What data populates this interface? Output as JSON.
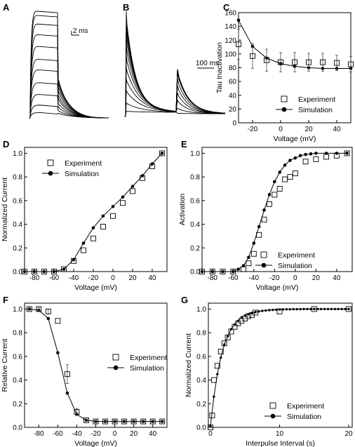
{
  "chart_data": [
    {
      "panel": "A",
      "type": "line",
      "title": "",
      "xlabel": "",
      "ylabel": "",
      "scalebar_label": "2 ms",
      "n_traces": 11,
      "trace_peaks": [
        1.0,
        0.96,
        0.88,
        0.78,
        0.67,
        0.55,
        0.45,
        0.33,
        0.22,
        0.12,
        0.05
      ],
      "axes": "none"
    },
    {
      "panel": "B",
      "type": "line",
      "title": "",
      "xlabel": "",
      "ylabel": "",
      "scalebar_label": "100 ms",
      "n_traces": 12,
      "trace_peaks": [
        1.0,
        0.95,
        0.9,
        0.84,
        0.77,
        0.68,
        0.58,
        0.47,
        0.36,
        0.25,
        0.13,
        0.05
      ],
      "axes": "none"
    },
    {
      "panel": "C",
      "type": "scatter",
      "xlabel": "Voltage (mV)",
      "ylabel": "Tau Inactivation",
      "xlim": [
        -30,
        50
      ],
      "ylim": [
        0,
        160
      ],
      "xticks": [
        -20,
        0,
        20,
        40
      ],
      "yticks": [
        0,
        20,
        40,
        60,
        80,
        100,
        120,
        140,
        160
      ],
      "legend_position": "bottom-right",
      "series": [
        {
          "name": "Experiment",
          "marker": "open-square",
          "x": [
            -30,
            -20,
            -10,
            0,
            10,
            20,
            30,
            40,
            50
          ],
          "y": [
            114,
            97,
            91,
            88,
            88,
            88,
            88,
            87,
            85
          ],
          "err": [
            22,
            18,
            16,
            14,
            14,
            13,
            13,
            11,
            11
          ]
        },
        {
          "name": "Simulation",
          "marker": "filled-circle",
          "x": [
            -30,
            -20,
            -10,
            0,
            10,
            20,
            30,
            40,
            50
          ],
          "y": [
            149,
            111,
            94,
            86,
            82,
            80,
            79,
            79,
            79
          ]
        }
      ]
    },
    {
      "panel": "D",
      "type": "scatter",
      "xlabel": "Voltage (mV)",
      "ylabel": "Normalized Current",
      "xlim": [
        -90,
        55
      ],
      "ylim": [
        0,
        1.05
      ],
      "xticks": [
        -80,
        -60,
        -40,
        -20,
        0,
        20,
        40
      ],
      "yticks": [
        0.0,
        0.2,
        0.4,
        0.6,
        0.8,
        1.0
      ],
      "legend_position": "top-left",
      "series": [
        {
          "name": "Experiment",
          "marker": "open-square",
          "x": [
            -90,
            -80,
            -70,
            -60,
            -50,
            -40,
            -30,
            -20,
            -10,
            0,
            10,
            20,
            30,
            40,
            50
          ],
          "y": [
            0.0,
            0.0,
            0.0,
            0.0,
            0.02,
            0.09,
            0.18,
            0.28,
            0.38,
            0.47,
            0.58,
            0.68,
            0.79,
            0.89,
            1.0
          ]
        },
        {
          "name": "Simulation",
          "marker": "filled-circle",
          "x": [
            -90,
            -80,
            -70,
            -60,
            -50,
            -40,
            -30,
            -20,
            -10,
            0,
            10,
            20,
            30,
            40,
            50
          ],
          "y": [
            0.0,
            0.0,
            0.0,
            0.0,
            0.02,
            0.1,
            0.24,
            0.37,
            0.47,
            0.55,
            0.63,
            0.72,
            0.81,
            0.91,
            1.0
          ]
        }
      ]
    },
    {
      "panel": "E",
      "type": "scatter",
      "xlabel": "Voltage (mV)",
      "ylabel": "Activation",
      "xlim": [
        -90,
        55
      ],
      "ylim": [
        0,
        1.05
      ],
      "xticks": [
        -80,
        -60,
        -40,
        -20,
        0,
        20,
        40
      ],
      "yticks": [
        0.0,
        0.2,
        0.4,
        0.6,
        0.8,
        1.0
      ],
      "legend_position": "bottom-right",
      "series": [
        {
          "name": "Experiment",
          "marker": "open-square",
          "x": [
            -90,
            -80,
            -70,
            -60,
            -50,
            -45,
            -40,
            -35,
            -30,
            -25,
            -20,
            -15,
            -10,
            -5,
            0,
            10,
            20,
            30,
            40,
            50
          ],
          "y": [
            0.0,
            0.0,
            0.0,
            0.0,
            0.02,
            0.07,
            0.15,
            0.31,
            0.44,
            0.57,
            0.65,
            0.7,
            0.78,
            0.8,
            0.83,
            0.93,
            0.95,
            0.97,
            0.98,
            1.0
          ]
        },
        {
          "name": "Simulation",
          "marker": "filled-circle",
          "x": [
            -90,
            -80,
            -70,
            -60,
            -55,
            -50,
            -45,
            -40,
            -35,
            -30,
            -25,
            -20,
            -15,
            -10,
            -5,
            0,
            5,
            10,
            15,
            20,
            30,
            40,
            50
          ],
          "y": [
            0.0,
            0.0,
            0.0,
            0.0,
            0.02,
            0.05,
            0.12,
            0.24,
            0.38,
            0.52,
            0.65,
            0.76,
            0.84,
            0.9,
            0.94,
            0.96,
            0.98,
            0.99,
            0.995,
            1.0,
            1.0,
            1.0,
            1.0
          ]
        }
      ]
    },
    {
      "panel": "F",
      "type": "scatter",
      "xlabel": "Voltage (mV)",
      "ylabel": "Relative Current",
      "xlim": [
        -95,
        55
      ],
      "ylim": [
        0,
        1.05
      ],
      "xticks": [
        -80,
        -60,
        -40,
        -20,
        0,
        20,
        40
      ],
      "yticks": [
        0.0,
        0.2,
        0.4,
        0.6,
        0.8,
        1.0
      ],
      "legend_position": "center-right",
      "series": [
        {
          "name": "Experiment",
          "marker": "open-square",
          "x": [
            -90,
            -80,
            -70,
            -60,
            -50,
            -40,
            -30,
            -20,
            -10,
            0,
            10,
            20,
            30,
            40,
            50
          ],
          "y": [
            1.0,
            1.0,
            0.98,
            0.9,
            0.45,
            0.13,
            0.06,
            0.05,
            0.05,
            0.05,
            0.05,
            0.05,
            0.05,
            0.05,
            0.05
          ],
          "err": [
            0.01,
            0.01,
            0.02,
            0.0,
            0.08,
            0.03,
            0.01,
            0.01,
            0.01,
            0.01,
            0.01,
            0.01,
            0.01,
            0.01,
            0.01
          ]
        },
        {
          "name": "Simulation",
          "marker": "filled-circle",
          "x": [
            -90,
            -80,
            -70,
            -60,
            -50,
            -40,
            -30,
            -20,
            -10,
            0,
            10,
            20,
            30,
            40,
            50
          ],
          "y": [
            1.0,
            0.99,
            0.92,
            0.63,
            0.29,
            0.11,
            0.06,
            0.05,
            0.05,
            0.05,
            0.05,
            0.05,
            0.05,
            0.05,
            0.05
          ]
        }
      ]
    },
    {
      "panel": "G",
      "type": "scatter",
      "xlabel": "Interpulse Interval (s)",
      "ylabel": "Normalized Current",
      "xlim": [
        -0.3,
        20.5
      ],
      "ylim": [
        0,
        1.05
      ],
      "xticks": [
        0,
        10,
        20
      ],
      "yticks": [
        0.0,
        0.2,
        0.4,
        0.6,
        0.8,
        1.0
      ],
      "legend_position": "bottom-right",
      "series": [
        {
          "name": "Experiment",
          "marker": "open-square",
          "x": [
            0,
            0.25,
            0.5,
            1,
            1.5,
            2,
            2.5,
            3,
            3.5,
            4,
            4.5,
            5,
            5.5,
            6,
            6.5,
            10,
            15,
            20
          ],
          "y": [
            0.0,
            0.1,
            0.4,
            0.52,
            0.64,
            0.71,
            0.76,
            0.81,
            0.85,
            0.88,
            0.9,
            0.92,
            0.94,
            0.95,
            0.97,
            0.98,
            1.0,
            1.0
          ]
        },
        {
          "name": "Simulation",
          "marker": "filled-circle",
          "x": [
            0,
            0.5,
            1,
            1.5,
            2,
            2.5,
            3,
            3.5,
            4,
            4.5,
            5,
            5.5,
            6,
            6.5,
            7,
            7.5,
            8,
            8.5,
            9,
            9.5,
            10,
            10.5,
            11,
            11.5,
            12,
            12.5,
            13,
            13.5,
            14,
            14.5,
            15,
            15.5,
            16,
            16.5,
            17,
            17.5,
            18,
            18.5,
            19,
            19.5,
            20
          ],
          "y": [
            0.01,
            0.26,
            0.45,
            0.59,
            0.7,
            0.77,
            0.83,
            0.87,
            0.9,
            0.93,
            0.945,
            0.957,
            0.967,
            0.975,
            0.98,
            0.985,
            0.988,
            0.991,
            0.993,
            0.995,
            0.996,
            0.997,
            0.998,
            0.998,
            0.999,
            0.999,
            0.999,
            1.0,
            1.0,
            1.0,
            1.0,
            1.0,
            1.0,
            1.0,
            1.0,
            1.0,
            1.0,
            1.0,
            1.0,
            1.0,
            1.0
          ]
        }
      ]
    }
  ]
}
